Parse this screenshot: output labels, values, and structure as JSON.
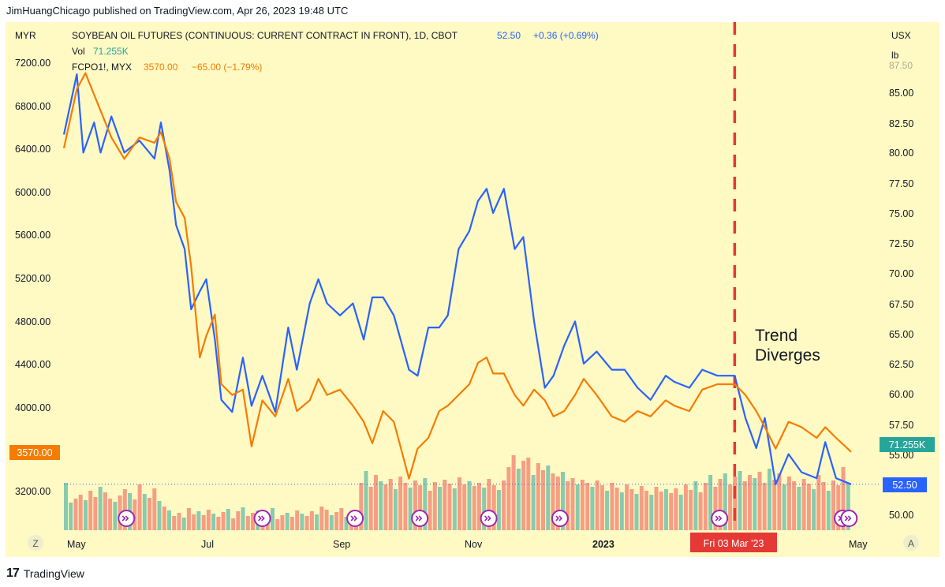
{
  "header": {
    "published": "JimHuangChicago published on TradingView.com, Apr 26, 2023 19:48 UTC"
  },
  "legend": {
    "main_title": "SOYBEAN OIL FUTURES (CONTINUOUS: CURRENT CONTRACT IN FRONT), 1D, CBOT",
    "main_price": "52.50",
    "main_change": "+0.36 (+0.69%)",
    "vol_label": "Vol",
    "vol_value": "71.255K",
    "compare_title": "FCPO1!, MYX",
    "compare_price": "3570.00",
    "compare_change": "−65.00 (−1.79%)"
  },
  "axes": {
    "left_currency": "MYR",
    "right_currency": "USX",
    "right_unit": "lb",
    "right_partial_top": "87.50",
    "left_ticks": [
      "7200.00",
      "6800.00",
      "6400.00",
      "6000.00",
      "5600.00",
      "5200.00",
      "4800.00",
      "4400.00",
      "4000.00",
      "3200.00"
    ],
    "right_ticks": [
      "85.00",
      "82.50",
      "80.00",
      "77.50",
      "75.00",
      "72.50",
      "70.00",
      "67.50",
      "65.00",
      "62.50",
      "60.00",
      "57.50",
      "55.00",
      "50.00"
    ],
    "x_ticks": [
      "May",
      "Jul",
      "Sep",
      "Nov",
      "2023",
      "May"
    ]
  },
  "badges": {
    "left_price": "3570.00",
    "vol": "71.255K",
    "right_price": "52.50",
    "date": "Fri 03 Mar '23"
  },
  "annotation": {
    "line1": "Trend",
    "line2": "Diverges"
  },
  "buttons": {
    "left": "Z",
    "right": "A"
  },
  "footer": {
    "brand": "TradingView"
  },
  "colors": {
    "background": "#fff9c4",
    "soybean_line": "#2962ff",
    "palm_line": "#f57c00",
    "vol_up": "#26a69a",
    "vol_down": "#ef5350",
    "divergence_marker": "#e53935",
    "event_icon": "#9c27b0"
  },
  "chart_data": {
    "type": "line",
    "title": "SOYBEAN OIL FUTURES (CONTINUOUS: CURRENT CONTRACT IN FRONT), 1D, CBOT",
    "x_range": [
      "2022-04-26",
      "2023-04-26"
    ],
    "marker_date": "2023-03-03",
    "series": [
      {
        "name": "SOYBEAN OIL FUTURES (CONTINUOUS: CURRENT CONTRACT IN FRONT)",
        "axis": "right",
        "unit": "USX/lb",
        "points": [
          [
            "2022-04-26",
            81.5
          ],
          [
            "2022-05-02",
            86.5
          ],
          [
            "2022-05-05",
            80.0
          ],
          [
            "2022-05-10",
            82.5
          ],
          [
            "2022-05-13",
            80.0
          ],
          [
            "2022-05-18",
            83.0
          ],
          [
            "2022-05-24",
            80.0
          ],
          [
            "2022-05-31",
            81.0
          ],
          [
            "2022-06-07",
            79.5
          ],
          [
            "2022-06-10",
            82.5
          ],
          [
            "2022-06-14",
            78.5
          ],
          [
            "2022-06-17",
            74.0
          ],
          [
            "2022-06-21",
            72.0
          ],
          [
            "2022-06-24",
            67.0
          ],
          [
            "2022-06-28",
            68.5
          ],
          [
            "2022-07-01",
            69.5
          ],
          [
            "2022-07-05",
            64.5
          ],
          [
            "2022-07-08",
            59.5
          ],
          [
            "2022-07-13",
            58.5
          ],
          [
            "2022-07-18",
            63.0
          ],
          [
            "2022-07-22",
            59.0
          ],
          [
            "2022-07-27",
            61.5
          ],
          [
            "2022-08-02",
            58.5
          ],
          [
            "2022-08-08",
            65.5
          ],
          [
            "2022-08-12",
            62.0
          ],
          [
            "2022-08-18",
            67.5
          ],
          [
            "2022-08-22",
            69.5
          ],
          [
            "2022-08-26",
            67.5
          ],
          [
            "2022-09-01",
            66.5
          ],
          [
            "2022-09-07",
            67.5
          ],
          [
            "2022-09-12",
            64.5
          ],
          [
            "2022-09-16",
            68.0
          ],
          [
            "2022-09-21",
            68.0
          ],
          [
            "2022-09-26",
            66.5
          ],
          [
            "2022-10-03",
            62.0
          ],
          [
            "2022-10-07",
            61.5
          ],
          [
            "2022-10-12",
            65.5
          ],
          [
            "2022-10-17",
            65.5
          ],
          [
            "2022-10-21",
            66.5
          ],
          [
            "2022-10-26",
            72.0
          ],
          [
            "2022-10-31",
            73.5
          ],
          [
            "2022-11-04",
            76.0
          ],
          [
            "2022-11-08",
            77.0
          ],
          [
            "2022-11-11",
            75.0
          ],
          [
            "2022-11-16",
            77.0
          ],
          [
            "2022-11-21",
            72.0
          ],
          [
            "2022-11-25",
            73.0
          ],
          [
            "2022-11-30",
            66.0
          ],
          [
            "2022-12-05",
            60.5
          ],
          [
            "2022-12-09",
            61.5
          ],
          [
            "2022-12-14",
            64.0
          ],
          [
            "2022-12-19",
            66.0
          ],
          [
            "2022-12-23",
            62.5
          ],
          [
            "2022-12-29",
            63.5
          ],
          [
            "2023-01-05",
            62.0
          ],
          [
            "2023-01-11",
            62.0
          ],
          [
            "2023-01-17",
            60.5
          ],
          [
            "2023-01-23",
            59.5
          ],
          [
            "2023-01-30",
            61.5
          ],
          [
            "2023-02-03",
            61.0
          ],
          [
            "2023-02-10",
            60.5
          ],
          [
            "2023-02-16",
            62.0
          ],
          [
            "2023-02-23",
            61.5
          ],
          [
            "2023-03-03",
            61.5
          ],
          [
            "2023-03-08",
            58.0
          ],
          [
            "2023-03-13",
            55.5
          ],
          [
            "2023-03-17",
            58.0
          ],
          [
            "2023-03-22",
            52.5
          ],
          [
            "2023-03-28",
            55.0
          ],
          [
            "2023-04-03",
            53.5
          ],
          [
            "2023-04-10",
            53.0
          ],
          [
            "2023-04-14",
            56.0
          ],
          [
            "2023-04-19",
            53.0
          ],
          [
            "2023-04-26",
            52.5
          ]
        ]
      },
      {
        "name": "FCPO1!, MYX",
        "axis": "left",
        "unit": "MYR",
        "points": [
          [
            "2022-04-26",
            6400
          ],
          [
            "2022-05-02",
            6950
          ],
          [
            "2022-05-06",
            7100
          ],
          [
            "2022-05-12",
            6800
          ],
          [
            "2022-05-18",
            6500
          ],
          [
            "2022-05-24",
            6300
          ],
          [
            "2022-05-31",
            6500
          ],
          [
            "2022-06-07",
            6450
          ],
          [
            "2022-06-10",
            6550
          ],
          [
            "2022-06-14",
            6300
          ],
          [
            "2022-06-17",
            5900
          ],
          [
            "2022-06-21",
            5750
          ],
          [
            "2022-06-24",
            5300
          ],
          [
            "2022-06-28",
            4450
          ],
          [
            "2022-07-01",
            4650
          ],
          [
            "2022-07-05",
            4850
          ],
          [
            "2022-07-08",
            4200
          ],
          [
            "2022-07-13",
            4100
          ],
          [
            "2022-07-18",
            4150
          ],
          [
            "2022-07-22",
            3620
          ],
          [
            "2022-07-27",
            4050
          ],
          [
            "2022-08-02",
            3900
          ],
          [
            "2022-08-08",
            4250
          ],
          [
            "2022-08-12",
            3950
          ],
          [
            "2022-08-18",
            4050
          ],
          [
            "2022-08-22",
            4250
          ],
          [
            "2022-08-26",
            4100
          ],
          [
            "2022-09-01",
            4150
          ],
          [
            "2022-09-07",
            4000
          ],
          [
            "2022-09-12",
            3850
          ],
          [
            "2022-09-16",
            3650
          ],
          [
            "2022-09-21",
            3950
          ],
          [
            "2022-09-26",
            3850
          ],
          [
            "2022-10-03",
            3320
          ],
          [
            "2022-10-07",
            3600
          ],
          [
            "2022-10-12",
            3700
          ],
          [
            "2022-10-17",
            3950
          ],
          [
            "2022-10-21",
            4000
          ],
          [
            "2022-10-26",
            4100
          ],
          [
            "2022-10-31",
            4200
          ],
          [
            "2022-11-04",
            4400
          ],
          [
            "2022-11-08",
            4450
          ],
          [
            "2022-11-11",
            4300
          ],
          [
            "2022-11-16",
            4300
          ],
          [
            "2022-11-21",
            4100
          ],
          [
            "2022-11-25",
            4000
          ],
          [
            "2022-11-30",
            4150
          ],
          [
            "2022-12-05",
            4050
          ],
          [
            "2022-12-09",
            3900
          ],
          [
            "2022-12-14",
            3950
          ],
          [
            "2022-12-19",
            4100
          ],
          [
            "2022-12-23",
            4250
          ],
          [
            "2022-12-29",
            4100
          ],
          [
            "2023-01-05",
            3900
          ],
          [
            "2023-01-11",
            3850
          ],
          [
            "2023-01-17",
            3950
          ],
          [
            "2023-01-23",
            3900
          ],
          [
            "2023-01-30",
            4050
          ],
          [
            "2023-02-03",
            4000
          ],
          [
            "2023-02-10",
            3950
          ],
          [
            "2023-02-16",
            4150
          ],
          [
            "2023-02-23",
            4200
          ],
          [
            "2023-03-03",
            4200
          ],
          [
            "2023-03-08",
            4100
          ],
          [
            "2023-03-13",
            3950
          ],
          [
            "2023-03-17",
            3800
          ],
          [
            "2023-03-22",
            3600
          ],
          [
            "2023-03-28",
            3850
          ],
          [
            "2023-04-03",
            3800
          ],
          [
            "2023-04-10",
            3700
          ],
          [
            "2023-04-14",
            3800
          ],
          [
            "2023-04-19",
            3700
          ],
          [
            "2023-04-26",
            3570
          ]
        ]
      }
    ],
    "volume": {
      "name": "Vol",
      "last": "71.255K",
      "bars": [
        [
          60,
          1
        ],
        [
          35,
          1
        ],
        [
          40,
          0
        ],
        [
          45,
          0
        ],
        [
          38,
          1
        ],
        [
          50,
          0
        ],
        [
          42,
          0
        ],
        [
          55,
          1
        ],
        [
          48,
          0
        ],
        [
          40,
          0
        ],
        [
          36,
          1
        ],
        [
          44,
          0
        ],
        [
          52,
          0
        ],
        [
          47,
          1
        ],
        [
          39,
          0
        ],
        [
          58,
          0
        ],
        [
          46,
          1
        ],
        [
          41,
          0
        ],
        [
          53,
          0
        ],
        [
          37,
          1
        ],
        [
          30,
          0
        ],
        [
          25,
          1
        ],
        [
          18,
          0
        ],
        [
          22,
          0
        ],
        [
          16,
          1
        ],
        [
          28,
          0
        ],
        [
          20,
          0
        ],
        [
          24,
          1
        ],
        [
          19,
          0
        ],
        [
          26,
          0
        ],
        [
          21,
          1
        ],
        [
          17,
          0
        ],
        [
          23,
          0
        ],
        [
          27,
          1
        ],
        [
          15,
          0
        ],
        [
          24,
          0
        ],
        [
          29,
          1
        ],
        [
          18,
          0
        ],
        [
          22,
          0
        ],
        [
          25,
          1
        ],
        [
          20,
          0
        ],
        [
          16,
          0
        ],
        [
          28,
          1
        ],
        [
          14,
          0
        ],
        [
          19,
          0
        ],
        [
          22,
          1
        ],
        [
          17,
          0
        ],
        [
          25,
          0
        ],
        [
          21,
          1
        ],
        [
          18,
          0
        ],
        [
          24,
          0
        ],
        [
          20,
          1
        ],
        [
          30,
          0
        ],
        [
          26,
          0
        ],
        [
          19,
          1
        ],
        [
          23,
          0
        ],
        [
          28,
          0
        ],
        [
          17,
          1
        ],
        [
          22,
          0
        ],
        [
          25,
          0
        ],
        [
          60,
          0
        ],
        [
          75,
          1
        ],
        [
          55,
          0
        ],
        [
          70,
          0
        ],
        [
          62,
          1
        ],
        [
          58,
          0
        ],
        [
          65,
          0
        ],
        [
          52,
          1
        ],
        [
          68,
          0
        ],
        [
          60,
          0
        ],
        [
          54,
          1
        ],
        [
          63,
          0
        ],
        [
          57,
          0
        ],
        [
          66,
          1
        ],
        [
          50,
          0
        ],
        [
          61,
          0
        ],
        [
          55,
          1
        ],
        [
          64,
          0
        ],
        [
          59,
          0
        ],
        [
          53,
          1
        ],
        [
          67,
          0
        ],
        [
          58,
          0
        ],
        [
          62,
          1
        ],
        [
          56,
          0
        ],
        [
          60,
          0
        ],
        [
          54,
          1
        ],
        [
          65,
          0
        ],
        [
          57,
          0
        ],
        [
          51,
          1
        ],
        [
          63,
          0
        ],
        [
          80,
          0
        ],
        [
          95,
          0
        ],
        [
          78,
          1
        ],
        [
          88,
          0
        ],
        [
          92,
          0
        ],
        [
          70,
          1
        ],
        [
          85,
          0
        ],
        [
          76,
          0
        ],
        [
          82,
          1
        ],
        [
          72,
          0
        ],
        [
          68,
          0
        ],
        [
          74,
          1
        ],
        [
          62,
          0
        ],
        [
          66,
          0
        ],
        [
          58,
          1
        ],
        [
          64,
          0
        ],
        [
          60,
          0
        ],
        [
          55,
          1
        ],
        [
          63,
          0
        ],
        [
          57,
          0
        ],
        [
          50,
          1
        ],
        [
          60,
          0
        ],
        [
          54,
          0
        ],
        [
          48,
          1
        ],
        [
          58,
          0
        ],
        [
          52,
          0
        ],
        [
          46,
          1
        ],
        [
          56,
          0
        ],
        [
          50,
          0
        ],
        [
          45,
          1
        ],
        [
          55,
          0
        ],
        [
          49,
          0
        ],
        [
          52,
          1
        ],
        [
          47,
          0
        ],
        [
          53,
          0
        ],
        [
          45,
          1
        ],
        [
          58,
          0
        ],
        [
          51,
          0
        ],
        [
          62,
          1
        ],
        [
          48,
          0
        ],
        [
          60,
          0
        ],
        [
          70,
          1
        ],
        [
          55,
          0
        ],
        [
          65,
          0
        ],
        [
          72,
          1
        ],
        [
          58,
          0
        ],
        [
          68,
          0
        ],
        [
          75,
          1
        ],
        [
          62,
          0
        ],
        [
          70,
          0
        ],
        [
          66,
          1
        ],
        [
          74,
          0
        ],
        [
          60,
          0
        ],
        [
          78,
          1
        ],
        [
          64,
          0
        ],
        [
          72,
          0
        ],
        [
          58,
          1
        ],
        [
          68,
          0
        ],
        [
          62,
          0
        ],
        [
          55,
          1
        ],
        [
          65,
          0
        ],
        [
          59,
          0
        ],
        [
          52,
          1
        ],
        [
          70,
          0
        ],
        [
          61,
          0
        ],
        [
          50,
          1
        ],
        [
          63,
          0
        ],
        [
          57,
          0
        ],
        [
          80,
          0
        ],
        [
          60,
          1
        ]
      ]
    },
    "events_x_dates": [
      "2022-05-25",
      "2022-07-27",
      "2022-09-08",
      "2022-10-08",
      "2022-11-09",
      "2022-12-12",
      "2023-02-24",
      "2023-04-22",
      "2023-04-25"
    ]
  }
}
